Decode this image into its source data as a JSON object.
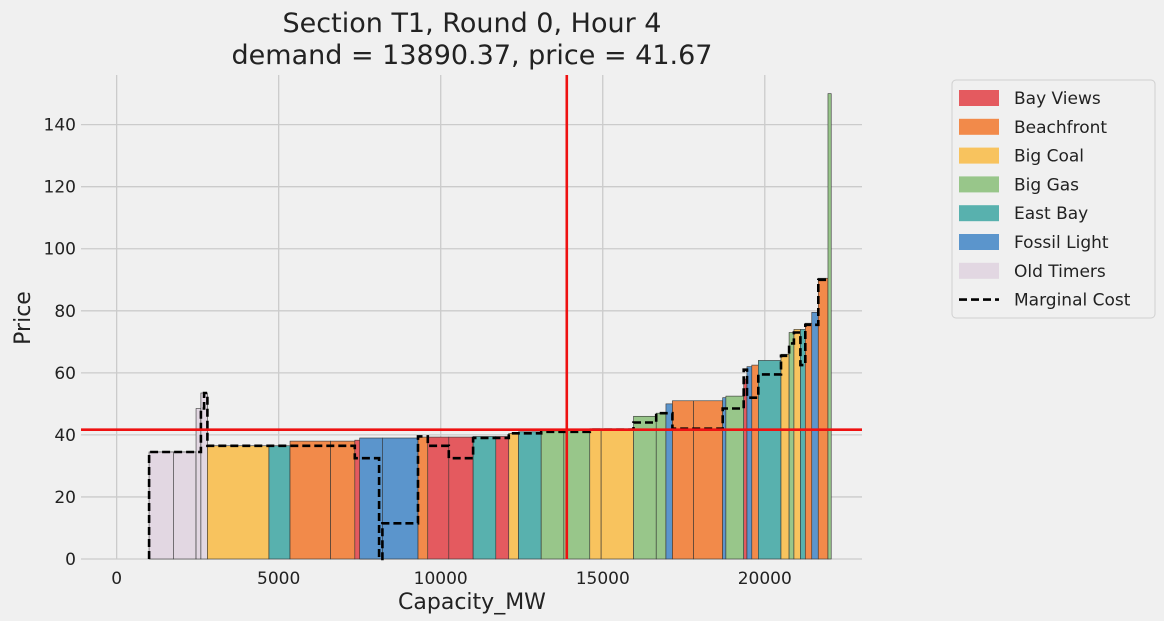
{
  "chart_data": {
    "type": "bar",
    "title": "Section T1, Round 0, Hour 4",
    "subtitle": "demand = 13890.37, price = 41.67",
    "xlabel": "Capacity_MW",
    "ylabel": "Price",
    "xlim": [
      -1100,
      23000
    ],
    "ylim": [
      0,
      156
    ],
    "xticks": [
      0,
      5000,
      10000,
      15000,
      20000
    ],
    "yticks": [
      0,
      20,
      40,
      60,
      80,
      100,
      120,
      140
    ],
    "grid": true,
    "legend_position": "outside-right",
    "demand": 13890.37,
    "price": 41.67,
    "colors": {
      "Bay Views": "#e45a5f",
      "Beachfront": "#f28a4a",
      "Big Coal": "#f8c35e",
      "Big Gas": "#98c68a",
      "East Bay": "#58b1ae",
      "Fossil Light": "#5b95cc",
      "Old Timers": "#e2d7e2"
    },
    "legend": [
      "Bay Views",
      "Beachfront",
      "Big Coal",
      "Big Gas",
      "East Bay",
      "Fossil Light",
      "Old Timers",
      "Marginal Cost"
    ],
    "bars": [
      {
        "x0": 1000,
        "x1": 1750,
        "y": 34.5,
        "portfolio": "Old Timers"
      },
      {
        "x0": 1750,
        "x1": 2450,
        "y": 34.5,
        "portfolio": "Old Timers"
      },
      {
        "x0": 2450,
        "x1": 2600,
        "y": 48.5,
        "portfolio": "Old Timers"
      },
      {
        "x0": 2600,
        "x1": 2800,
        "y": 53.5,
        "portfolio": "Old Timers"
      },
      {
        "x0": 2800,
        "x1": 4700,
        "y": 36.5,
        "portfolio": "Big Coal"
      },
      {
        "x0": 4700,
        "x1": 5350,
        "y": 36.5,
        "portfolio": "East Bay"
      },
      {
        "x0": 5350,
        "x1": 6600,
        "y": 38.0,
        "portfolio": "Beachfront"
      },
      {
        "x0": 6600,
        "x1": 7350,
        "y": 38.0,
        "portfolio": "Beachfront"
      },
      {
        "x0": 7350,
        "x1": 8100,
        "y": 38.3,
        "portfolio": "Bay Views"
      },
      {
        "x0": 8100,
        "x1": 8150,
        "y": 38.5,
        "portfolio": "Bay Views"
      },
      {
        "x0": 7500,
        "x1": 8200,
        "y": 39.0,
        "portfolio": "Fossil Light"
      },
      {
        "x0": 8200,
        "x1": 9300,
        "y": 39.0,
        "portfolio": "Fossil Light"
      },
      {
        "x0": 9300,
        "x1": 9600,
        "y": 39.3,
        "portfolio": "Beachfront"
      },
      {
        "x0": 9600,
        "x1": 10250,
        "y": 39.3,
        "portfolio": "Bay Views"
      },
      {
        "x0": 10250,
        "x1": 11000,
        "y": 39.3,
        "portfolio": "Bay Views"
      },
      {
        "x0": 11000,
        "x1": 11700,
        "y": 39.5,
        "portfolio": "East Bay"
      },
      {
        "x0": 11700,
        "x1": 12100,
        "y": 39.5,
        "portfolio": "Bay Views"
      },
      {
        "x0": 12100,
        "x1": 12400,
        "y": 40.5,
        "portfolio": "Big Coal"
      },
      {
        "x0": 12400,
        "x1": 13100,
        "y": 41.0,
        "portfolio": "East Bay"
      },
      {
        "x0": 13100,
        "x1": 13800,
        "y": 41.3,
        "portfolio": "Big Gas"
      },
      {
        "x0": 13800,
        "x1": 14600,
        "y": 41.67,
        "portfolio": "Big Gas"
      },
      {
        "x0": 14600,
        "x1": 14950,
        "y": 42.0,
        "portfolio": "Big Coal"
      },
      {
        "x0": 14950,
        "x1": 15950,
        "y": 42.0,
        "portfolio": "Big Coal"
      },
      {
        "x0": 15950,
        "x1": 16650,
        "y": 46.0,
        "portfolio": "Big Gas"
      },
      {
        "x0": 16650,
        "x1": 16950,
        "y": 47.0,
        "portfolio": "Big Gas"
      },
      {
        "x0": 16950,
        "x1": 17150,
        "y": 50.0,
        "portfolio": "Fossil Light"
      },
      {
        "x0": 17150,
        "x1": 17800,
        "y": 51.0,
        "portfolio": "Beachfront"
      },
      {
        "x0": 17800,
        "x1": 18700,
        "y": 51.0,
        "portfolio": "Beachfront"
      },
      {
        "x0": 18700,
        "x1": 18800,
        "y": 52.0,
        "portfolio": "Fossil Light"
      },
      {
        "x0": 18800,
        "x1": 19350,
        "y": 52.5,
        "portfolio": "Big Gas"
      },
      {
        "x0": 19350,
        "x1": 19450,
        "y": 58.0,
        "portfolio": "Bay Views"
      },
      {
        "x0": 19450,
        "x1": 19600,
        "y": 62.0,
        "portfolio": "Fossil Light"
      },
      {
        "x0": 19600,
        "x1": 19800,
        "y": 62.5,
        "portfolio": "Beachfront"
      },
      {
        "x0": 19800,
        "x1": 20500,
        "y": 64.0,
        "portfolio": "East Bay"
      },
      {
        "x0": 20500,
        "x1": 20750,
        "y": 66.0,
        "portfolio": "Big Coal"
      },
      {
        "x0": 20750,
        "x1": 20900,
        "y": 73.0,
        "portfolio": "Big Gas"
      },
      {
        "x0": 20900,
        "x1": 21100,
        "y": 74.0,
        "portfolio": "Big Coal"
      },
      {
        "x0": 21100,
        "x1": 21250,
        "y": 74.0,
        "portfolio": "East Bay"
      },
      {
        "x0": 21250,
        "x1": 21450,
        "y": 76.0,
        "portfolio": "Beachfront"
      },
      {
        "x0": 21450,
        "x1": 21650,
        "y": 79.5,
        "portfolio": "Fossil Light"
      },
      {
        "x0": 21650,
        "x1": 21950,
        "y": 90.5,
        "portfolio": "Beachfront"
      },
      {
        "x0": 21950,
        "x1": 22050,
        "y": 150.0,
        "portfolio": "Big Gas"
      }
    ],
    "marginal_cost": {
      "name": "Marginal Cost",
      "x": [
        1000,
        1000,
        2600,
        2600,
        2700,
        2700,
        2800,
        2800,
        7350,
        7350,
        8100,
        8100,
        8150,
        8150,
        8200,
        8200,
        9300,
        9300,
        9600,
        9600,
        10250,
        10250,
        11000,
        11000,
        12100,
        12100,
        13100,
        13100,
        14600,
        14600,
        15950,
        15950,
        16650,
        16650,
        17150,
        17150,
        18700,
        18700,
        19350,
        19350,
        19450,
        19450,
        19800,
        19800,
        20500,
        20500,
        20750,
        20750,
        20900,
        20900,
        21100,
        21100,
        21250,
        21250,
        21650,
        21650,
        21950,
        21950
      ],
      "y": [
        0,
        34.5,
        34.5,
        48.5,
        48.5,
        53.5,
        53.5,
        36.5,
        36.5,
        32.5,
        32.5,
        0,
        0,
        0,
        0,
        11.5,
        11.5,
        39.5,
        39.5,
        36.5,
        36.5,
        32.5,
        32.5,
        39.0,
        39.0,
        40.5,
        40.5,
        41.0,
        41.0,
        41.67,
        41.67,
        44.0,
        44.0,
        47.0,
        47.0,
        42.0,
        42.0,
        48.5,
        48.5,
        61.0,
        61.0,
        52.0,
        52.0,
        59.5,
        59.5,
        65.5,
        65.5,
        69.5,
        69.5,
        73.0,
        73.0,
        62.5,
        62.5,
        75.5,
        75.5,
        90.0,
        90.0,
        90.0
      ]
    }
  }
}
